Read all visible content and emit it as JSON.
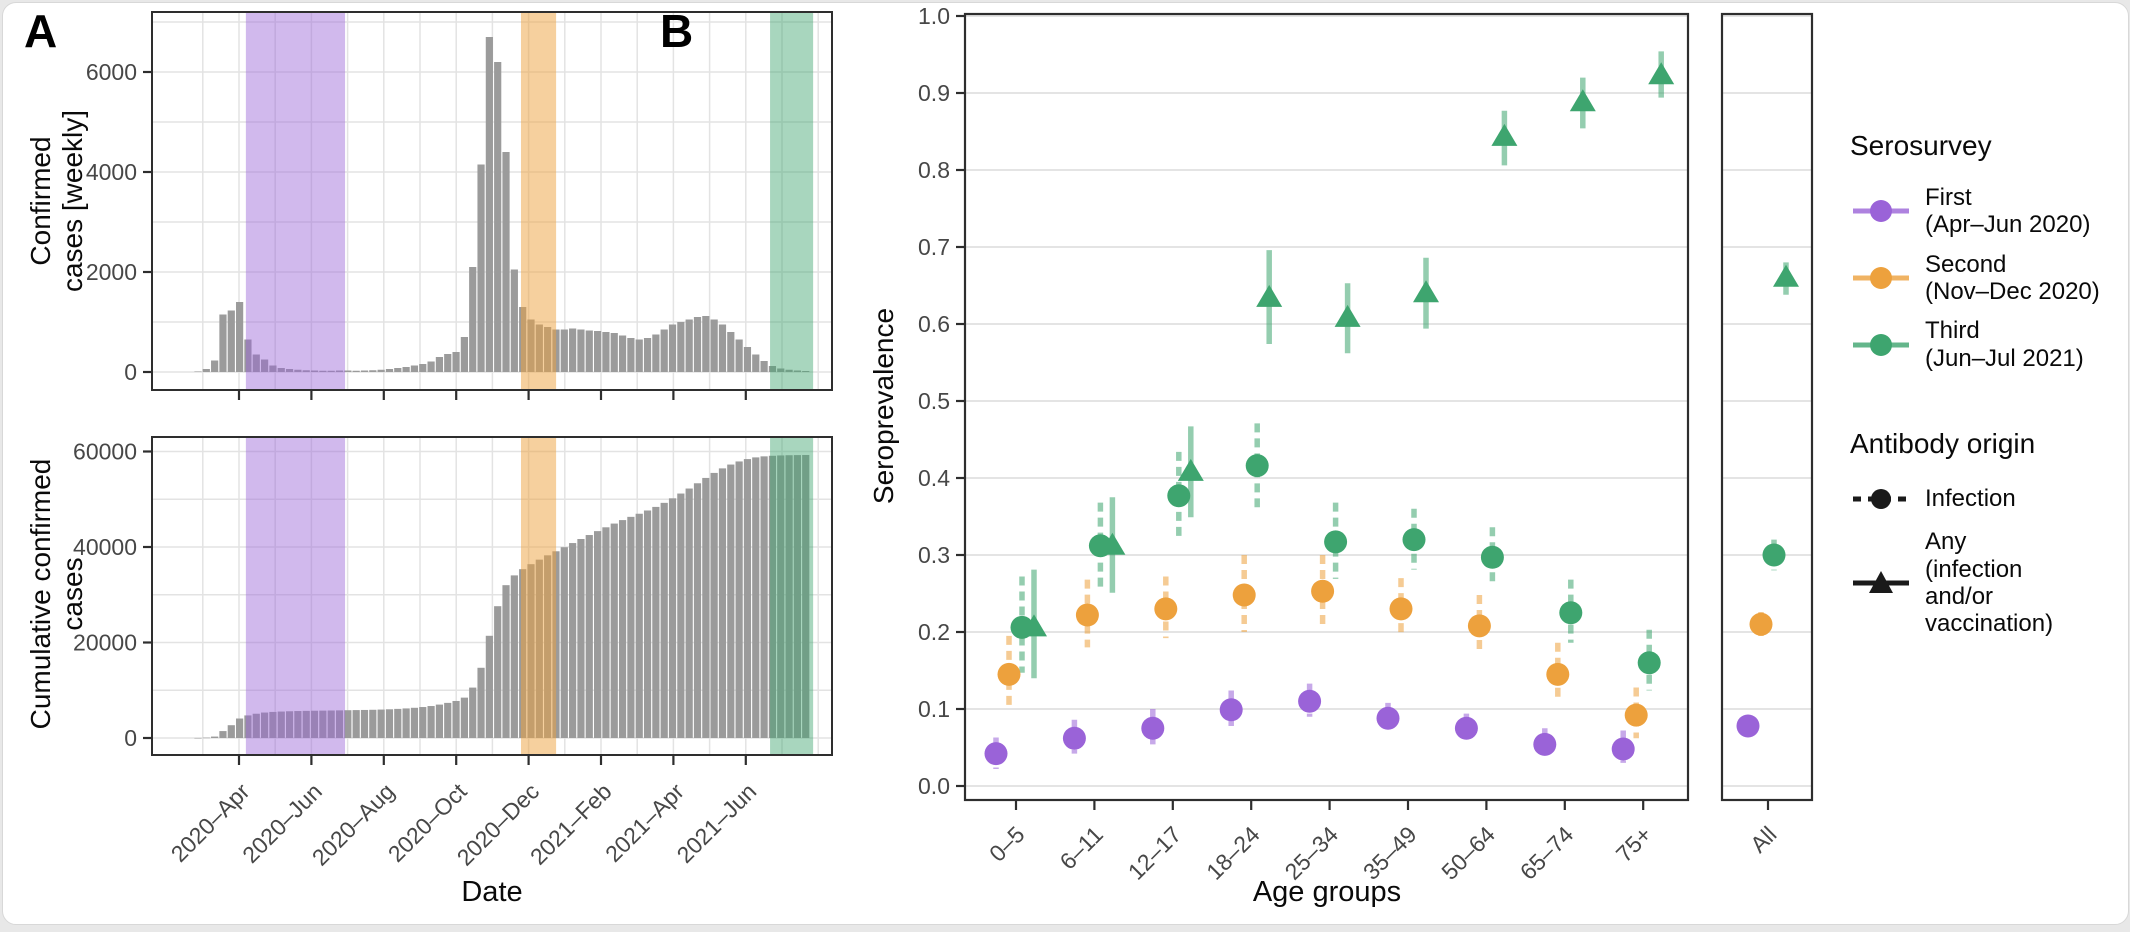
{
  "figure": {
    "panel_a_label": "A",
    "panel_b_label": "B"
  },
  "survey_bands": [
    {
      "name": "First (Apr–Jun 2020)",
      "color": "#9A63D8",
      "opacity": 0.45,
      "start_month": 0.19,
      "end_month": 2.93
    },
    {
      "name": "Second (Nov–Dec 2020)",
      "color": "#EDA13D",
      "opacity": 0.5,
      "start_month": 7.79,
      "end_month": 8.76
    },
    {
      "name": "Third (Jun–Jul 2021)",
      "color": "#3EA56F",
      "opacity": 0.45,
      "start_month": 14.67,
      "end_month": 15.86
    }
  ],
  "chart_data": [
    {
      "type": "bar",
      "panel": "A-top",
      "title": "",
      "ylabel": "Confirmed\ncases [weekly]",
      "xlabel": "",
      "ylim": [
        0,
        7180
      ],
      "yticks": [
        0,
        2000,
        4000,
        6000
      ],
      "bar_color": "#9B9B9B",
      "grid": true,
      "x_tick_labels": [
        "2020–Apr",
        "2020–Jun",
        "2020–Aug",
        "2020–Oct",
        "2020–Dec",
        "2021–Feb",
        "2021–Apr",
        "2021–Jun"
      ],
      "weeks_start": "2020-02-24",
      "start_offset_months": -1.248,
      "week_months": 0.22998,
      "values": [
        10,
        60,
        230,
        1150,
        1230,
        1400,
        650,
        350,
        250,
        130,
        80,
        60,
        45,
        35,
        30,
        25,
        25,
        30,
        30,
        25,
        30,
        35,
        45,
        60,
        80,
        100,
        130,
        160,
        210,
        300,
        360,
        400,
        700,
        2100,
        4150,
        6700,
        6200,
        4400,
        2050,
        1300,
        1050,
        950,
        900,
        850,
        850,
        870,
        850,
        830,
        820,
        800,
        780,
        730,
        680,
        650,
        680,
        750,
        850,
        950,
        1000,
        1050,
        1100,
        1120,
        1050,
        950,
        800,
        650,
        500,
        350,
        220,
        120,
        70,
        45,
        30,
        20
      ]
    },
    {
      "type": "bar",
      "panel": "A-bottom",
      "title": "",
      "ylabel": "Cumulative confirmed\ncases",
      "xlabel": "Date",
      "ylim": [
        0,
        63000
      ],
      "yticks": [
        0,
        20000,
        40000,
        60000
      ],
      "bar_color": "#9B9B9B",
      "grid": true,
      "x_tick_labels": [
        "2020–Apr",
        "2020–Jun",
        "2020–Aug",
        "2020–Oct",
        "2020–Dec",
        "2021–Feb",
        "2021–Apr",
        "2021–Jun"
      ],
      "weeks_start": "2020-02-24",
      "start_offset_months": -1.248,
      "week_months": 0.22998,
      "values": [
        10,
        70,
        300,
        1450,
        2680,
        4080,
        4730,
        5080,
        5330,
        5460,
        5540,
        5600,
        5645,
        5680,
        5710,
        5735,
        5760,
        5790,
        5820,
        5845,
        5875,
        5910,
        5955,
        6015,
        6095,
        6195,
        6325,
        6485,
        6695,
        6995,
        7355,
        7755,
        8455,
        10555,
        14705,
        21405,
        27605,
        32005,
        34055,
        35355,
        36405,
        37355,
        38255,
        39105,
        39955,
        40825,
        41675,
        42505,
        43325,
        44125,
        44905,
        45635,
        46315,
        46965,
        47645,
        48395,
        49245,
        50195,
        51195,
        52245,
        53345,
        54465,
        55515,
        56465,
        57265,
        57915,
        58415,
        58765,
        58985,
        59105,
        59175,
        59220,
        59250,
        59270
      ]
    },
    {
      "type": "scatter",
      "panel": "B",
      "title": "",
      "ylabel": "Seroprevalence",
      "xlabel": "Age groups",
      "ylim": [
        0,
        1.0
      ],
      "yticks": [
        0.0,
        0.1,
        0.2,
        0.3,
        0.4,
        0.5,
        0.6,
        0.7,
        0.8,
        0.9,
        1.0
      ],
      "grid": true,
      "legend_position": "right",
      "categories": [
        "0–5",
        "6–11",
        "12–17",
        "18–24",
        "25–34",
        "35–49",
        "50–64",
        "65–74",
        "75+"
      ],
      "all_category": "All",
      "series": [
        {
          "name": "First (Apr–Jun 2020) — Infection",
          "color": "#9A63D8",
          "marker": "circle",
          "errorbar": "dashed",
          "values": [
            0.042,
            0.062,
            0.075,
            0.099,
            0.11,
            0.088,
            0.075,
            0.054,
            0.048
          ],
          "lo": [
            0.022,
            0.042,
            0.054,
            0.078,
            0.09,
            0.07,
            0.059,
            0.038,
            0.03
          ],
          "hi": [
            0.063,
            0.086,
            0.1,
            0.124,
            0.133,
            0.108,
            0.094,
            0.075,
            0.072
          ],
          "all": {
            "value": 0.078,
            "lo": 0.068,
            "hi": 0.088
          }
        },
        {
          "name": "Second (Nov–Dec 2020) — Infection",
          "color": "#EDA13D",
          "marker": "circle",
          "errorbar": "dashed",
          "values": [
            0.145,
            0.222,
            0.23,
            0.248,
            0.253,
            0.23,
            0.208,
            0.145,
            0.092
          ],
          "lo": [
            0.103,
            0.18,
            0.192,
            0.2,
            0.21,
            0.192,
            0.172,
            0.11,
            0.062
          ],
          "hi": [
            0.195,
            0.268,
            0.272,
            0.3,
            0.3,
            0.27,
            0.248,
            0.186,
            0.128
          ],
          "all": {
            "value": 0.21,
            "lo": 0.192,
            "hi": 0.226
          }
        },
        {
          "name": "Third (Jun–Jul 2021) — Infection",
          "color": "#3EA56F",
          "marker": "circle",
          "errorbar": "dashed",
          "values": [
            0.206,
            0.312,
            0.377,
            0.416,
            0.317,
            0.32,
            0.297,
            0.225,
            0.16
          ],
          "lo": [
            0.147,
            0.258,
            0.322,
            0.362,
            0.269,
            0.281,
            0.26,
            0.186,
            0.124
          ],
          "hi": [
            0.272,
            0.368,
            0.434,
            0.471,
            0.368,
            0.36,
            0.336,
            0.268,
            0.203
          ],
          "all": {
            "value": 0.3,
            "lo": 0.28,
            "hi": 0.32
          }
        },
        {
          "name": "Third (Jun–Jul 2021) — Any (infection and/or vaccination)",
          "color": "#3EA56F",
          "marker": "triangle",
          "errorbar": "solid",
          "values": [
            0.206,
            0.312,
            0.408,
            0.634,
            0.608,
            0.64,
            0.843,
            0.888,
            0.923
          ],
          "lo": [
            0.14,
            0.251,
            0.349,
            0.574,
            0.562,
            0.594,
            0.806,
            0.854,
            0.894
          ],
          "hi": [
            0.281,
            0.375,
            0.467,
            0.696,
            0.653,
            0.686,
            0.877,
            0.92,
            0.954
          ],
          "all": {
            "value": 0.66,
            "lo": 0.638,
            "hi": 0.68
          }
        }
      ]
    }
  ],
  "legend": {
    "serosurvey": {
      "title": "Serosurvey",
      "items": [
        {
          "label": "First\n(Apr–Jun 2020)",
          "color": "#9A63D8"
        },
        {
          "label": "Second\n(Nov–Dec 2020)",
          "color": "#EDA13D"
        },
        {
          "label": "Third\n(Jun–Jul 2021)",
          "color": "#3EA56F"
        }
      ]
    },
    "antibody_origin": {
      "title": "Antibody origin",
      "items": [
        {
          "label": "Infection",
          "marker": "circle",
          "line": "dashed",
          "color": "#1a1a1a"
        },
        {
          "label": "Any\n(infection\nand/or\nvaccination)",
          "marker": "triangle",
          "line": "solid",
          "color": "#1a1a1a"
        }
      ]
    }
  }
}
